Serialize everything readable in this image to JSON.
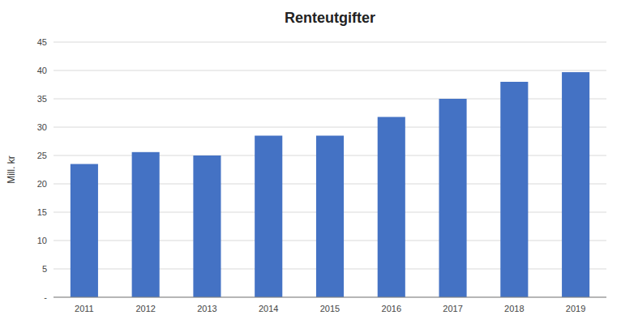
{
  "chart_data": {
    "type": "bar",
    "title": "Renteutgifter",
    "ylabel": "Mill. kr",
    "categories": [
      "2011",
      "2012",
      "2013",
      "2014",
      "2015",
      "2016",
      "2017",
      "2018",
      "2019"
    ],
    "values": [
      23.5,
      25.6,
      25.0,
      28.5,
      28.5,
      31.8,
      35.0,
      38.0,
      39.7
    ],
    "color": "#4472C4",
    "ylim": [
      0,
      45
    ],
    "yticks": [
      {
        "value": 0,
        "label": "-"
      },
      5,
      10,
      15,
      20,
      25,
      30,
      35,
      40,
      45
    ],
    "grid": true
  }
}
